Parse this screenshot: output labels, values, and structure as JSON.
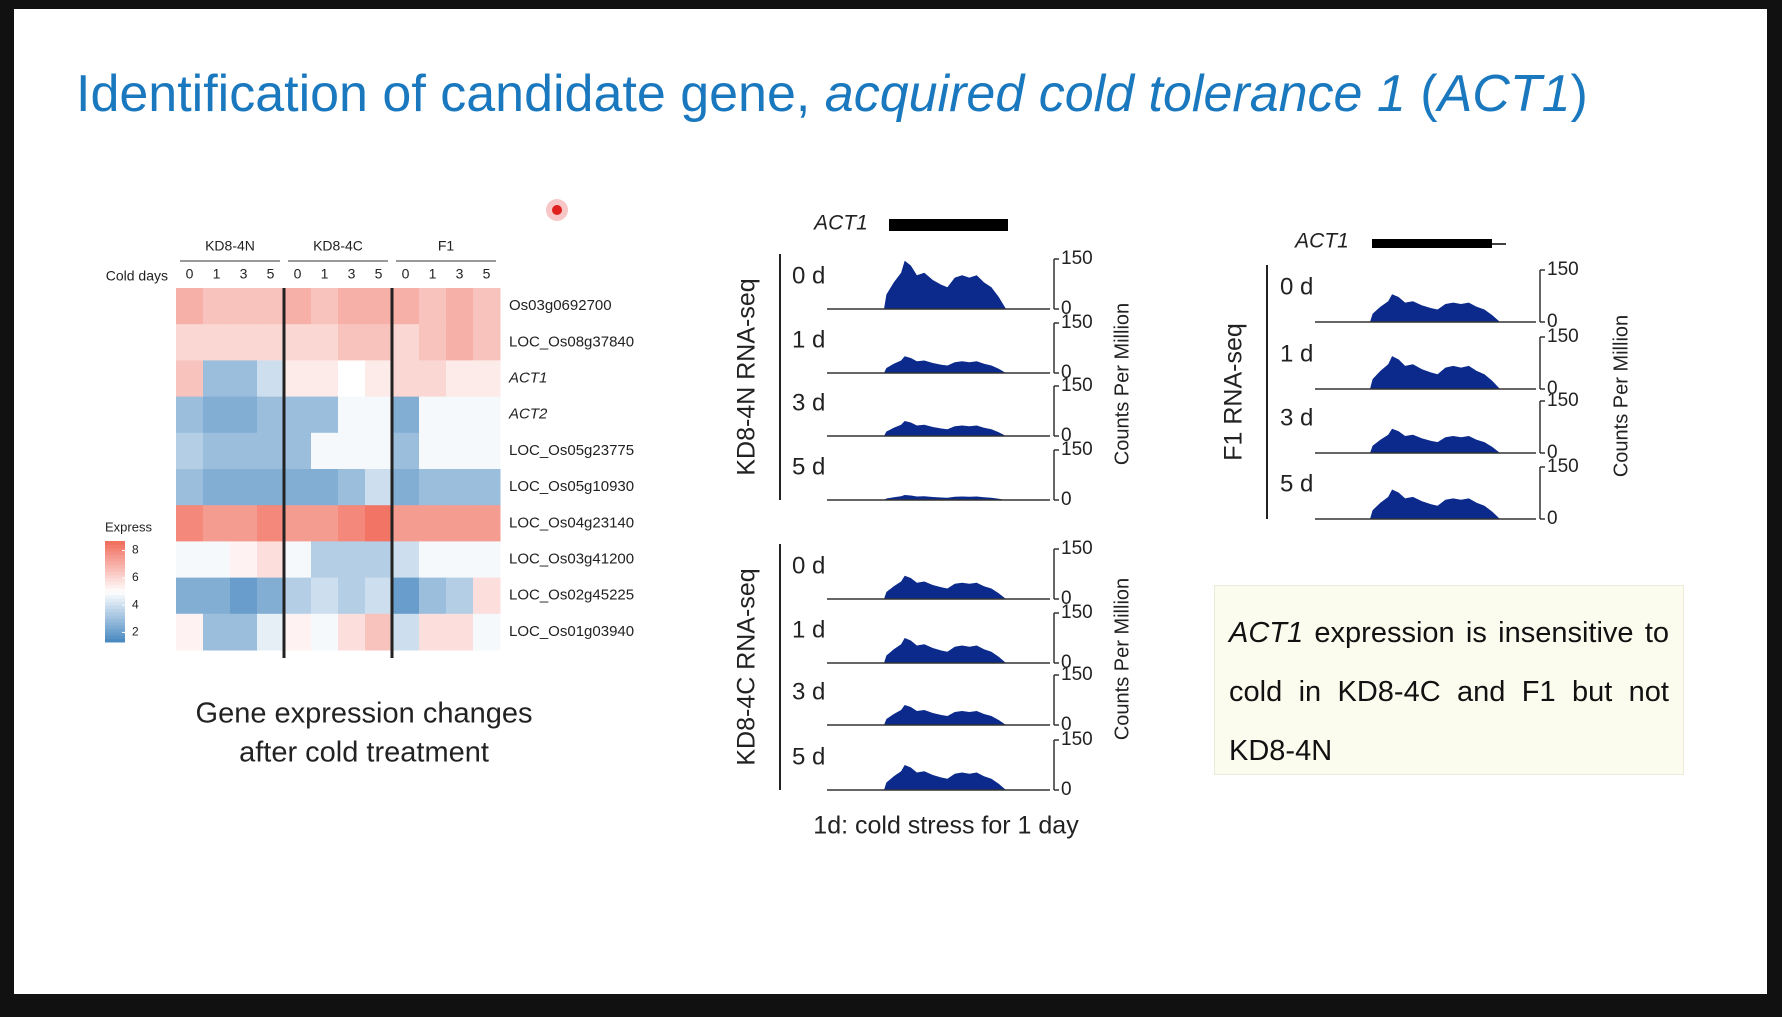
{
  "title": [
    {
      "text": "Identification of candidate gene, ",
      "italic": false
    },
    {
      "text": "acquired cold tolerance 1",
      "italic": true
    },
    {
      "text": " (",
      "italic": false
    },
    {
      "text": "ACT1",
      "italic": true
    },
    {
      "text": ")",
      "italic": false
    }
  ],
  "heatmap": {
    "row_header": "Cold days",
    "groups": [
      "KD8-4N",
      "KD8-4C",
      "F1"
    ],
    "days": [
      0,
      1,
      3,
      5
    ],
    "genes": [
      {
        "name": "Os03g0692700",
        "italic": false
      },
      {
        "name": "LOC_Os08g37840",
        "italic": false
      },
      {
        "name": "ACT1",
        "italic": true
      },
      {
        "name": "ACT2",
        "italic": true
      },
      {
        "name": "LOC_Os05g23775",
        "italic": false
      },
      {
        "name": "LOC_Os05g10930",
        "italic": false
      },
      {
        "name": "LOC_Os04g23140",
        "italic": false
      },
      {
        "name": "LOC_Os03g41200",
        "italic": false
      },
      {
        "name": "LOC_Os02g45225",
        "italic": false
      },
      {
        "name": "LOC_Os01g03940",
        "italic": false
      }
    ],
    "values": [
      [
        7,
        6.5,
        6.5,
        6.5,
        7,
        6.5,
        7,
        7,
        7,
        6.5,
        7,
        6.5
      ],
      [
        6,
        6,
        6,
        6,
        6,
        6,
        6.5,
        6.5,
        6,
        6.5,
        7,
        6.5
      ],
      [
        6.5,
        3,
        3,
        4,
        5.5,
        5.5,
        5,
        5.5,
        6,
        6,
        5.5,
        5.5
      ],
      [
        3,
        2.5,
        2.5,
        3,
        3,
        3,
        4.8,
        4.8,
        2.5,
        4.8,
        4.8,
        4.8
      ],
      [
        3.5,
        3,
        3,
        3,
        3,
        4.8,
        4.8,
        4.8,
        3,
        4.8,
        4.8,
        4.8
      ],
      [
        3,
        2.5,
        2.5,
        2.5,
        2.5,
        2.5,
        3,
        4,
        2.5,
        3,
        3,
        3
      ],
      [
        8,
        7.5,
        7.5,
        8,
        7.5,
        7.5,
        8,
        8.5,
        7.5,
        7.5,
        7.5,
        7.5
      ],
      [
        4.8,
        4.8,
        5.3,
        5.8,
        4.8,
        3.5,
        3.5,
        3.5,
        4,
        4.8,
        4.8,
        4.8
      ],
      [
        2.5,
        2.5,
        2,
        2.5,
        3.5,
        4,
        3.5,
        4,
        2,
        3,
        3.5,
        5.8
      ],
      [
        5.3,
        3,
        3,
        4.5,
        5.3,
        4.8,
        5.8,
        6.5,
        4,
        5.8,
        5.8,
        4.8
      ]
    ],
    "legend": {
      "title": "Express",
      "ticks": [
        8,
        6,
        4,
        2
      ],
      "lim": [
        1.3,
        8.7
      ]
    },
    "caption": [
      "Gene expression changes",
      "after cold treatment"
    ]
  },
  "tracks": {
    "gene": "ACT1",
    "axis_label": "Counts Per Million",
    "ylim": [
      0,
      150
    ],
    "yticks": [
      0,
      150
    ],
    "panels": [
      {
        "label": "KD8-4N RNA-seq",
        "days": [
          "0 d",
          "1 d",
          "3 d",
          "5 d"
        ],
        "peaks": [
          145,
          50,
          45,
          15
        ]
      },
      {
        "label": "KD8-4C RNA-seq",
        "days": [
          "0 d",
          "1 d",
          "3 d",
          "5 d"
        ],
        "peaks": [
          70,
          75,
          60,
          75
        ]
      },
      {
        "label": "F1 RNA-seq",
        "days": [
          "0 d",
          "1 d",
          "3 d",
          "5 d"
        ],
        "peaks": [
          80,
          95,
          70,
          85
        ]
      }
    ],
    "caption": "1d: cold stress for 1 day"
  },
  "note": [
    {
      "text": "ACT1",
      "italic": true
    },
    {
      "text": " expression is insensitive to cold in KD8-4C and F1 but not KD8-4N",
      "italic": false
    }
  ]
}
